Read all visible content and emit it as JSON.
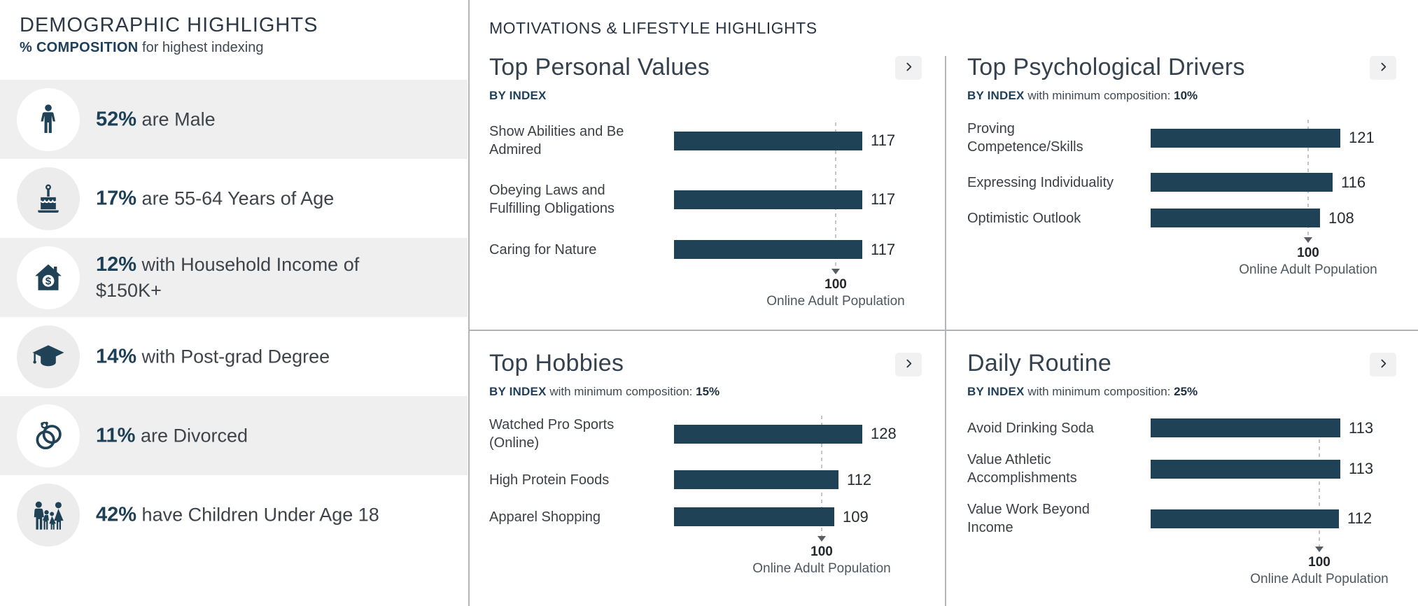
{
  "demographics": {
    "title": "DEMOGRAPHIC HIGHLIGHTS",
    "subtitle_emphasis": "% COMPOSITION",
    "subtitle_rest": "for highest indexing",
    "rows": [
      {
        "icon": "male-icon",
        "pct": "52%",
        "text": "are Male"
      },
      {
        "icon": "birthday-cake-icon",
        "pct": "17%",
        "text": "are 55-64 Years of Age"
      },
      {
        "icon": "house-income-icon",
        "pct": "12%",
        "text": "with Household Income of\n$150K+"
      },
      {
        "icon": "graduation-cap-icon",
        "pct": "14%",
        "text": "with Post-grad Degree"
      },
      {
        "icon": "wedding-rings-icon",
        "pct": "11%",
        "text": "are Divorced"
      },
      {
        "icon": "family-icon",
        "pct": "42%",
        "text": "have Children Under Age 18"
      }
    ]
  },
  "motivations": {
    "header": "MOTIVATIONS & LIFESTYLE HIGHLIGHTS",
    "reference": {
      "value": "100",
      "label": "Online Adult Population"
    },
    "panels": [
      {
        "id": "top-personal-values",
        "title": "Top Personal Values",
        "index_label": "BY INDEX",
        "composition_text": "",
        "composition_value": "",
        "bars": [
          {
            "label": "Show Abilities and Be\nAdmired",
            "value": 117
          },
          {
            "label": "Obeying Laws and\nFulfilling Obligations",
            "value": 117
          },
          {
            "label": "Caring for Nature",
            "value": 117
          }
        ]
      },
      {
        "id": "top-psychological-drivers",
        "title": "Top Psychological Drivers",
        "index_label": "BY INDEX",
        "composition_text": "with minimum composition:",
        "composition_value": "10%",
        "bars": [
          {
            "label": "Proving\nCompetence/Skills",
            "value": 121
          },
          {
            "label": "Expressing Individuality",
            "value": 116
          },
          {
            "label": "Optimistic Outlook",
            "value": 108
          }
        ]
      },
      {
        "id": "top-hobbies",
        "title": "Top Hobbies",
        "index_label": "BY INDEX",
        "composition_text": "with minimum composition:",
        "composition_value": "15%",
        "bars": [
          {
            "label": "Watched Pro Sports\n(Online)",
            "value": 128
          },
          {
            "label": "High Protein Foods",
            "value": 112
          },
          {
            "label": "Apparel Shopping",
            "value": 109
          }
        ]
      },
      {
        "id": "daily-routine",
        "title": "Daily Routine",
        "index_label": "BY INDEX",
        "composition_text": "with minimum composition:",
        "composition_value": "25%",
        "bars": [
          {
            "label": "Avoid Drinking Soda",
            "value": 113
          },
          {
            "label": "Value Athletic\nAccomplishments",
            "value": 113
          },
          {
            "label": "Value Work Beyond\nIncome",
            "value": 112
          }
        ]
      }
    ]
  },
  "colors": {
    "navy": "#1F4257",
    "row_shade": "#EFEFEF",
    "divider": "#B2B6B9"
  },
  "chart_data": [
    {
      "type": "bar",
      "orientation": "horizontal",
      "title": "Top Personal Values",
      "subtitle": "BY INDEX",
      "categories": [
        "Show Abilities and Be Admired",
        "Obeying Laws and Fulfilling Obligations",
        "Caring for Nature"
      ],
      "values": [
        117,
        117,
        117
      ],
      "reference_line": {
        "value": 100,
        "label": "Online Adult Population"
      },
      "xlim": [
        0,
        140
      ],
      "grid": false,
      "legend": false
    },
    {
      "type": "bar",
      "orientation": "horizontal",
      "title": "Top Psychological Drivers",
      "subtitle": "BY INDEX with minimum composition: 10%",
      "categories": [
        "Proving Competence/Skills",
        "Expressing Individuality",
        "Optimistic Outlook"
      ],
      "values": [
        121,
        116,
        108
      ],
      "reference_line": {
        "value": 100,
        "label": "Online Adult Population"
      },
      "xlim": [
        0,
        140
      ],
      "grid": false,
      "legend": false
    },
    {
      "type": "bar",
      "orientation": "horizontal",
      "title": "Top Hobbies",
      "subtitle": "BY INDEX with minimum composition: 15%",
      "categories": [
        "Watched Pro Sports (Online)",
        "High Protein Foods",
        "Apparel Shopping"
      ],
      "values": [
        128,
        112,
        109
      ],
      "reference_line": {
        "value": 100,
        "label": "Online Adult Population"
      },
      "xlim": [
        0,
        160
      ],
      "grid": false,
      "legend": false
    },
    {
      "type": "bar",
      "orientation": "horizontal",
      "title": "Daily Routine",
      "subtitle": "BY INDEX with minimum composition: 25%",
      "categories": [
        "Avoid Drinking Soda",
        "Value Athletic Accomplishments",
        "Value Work Beyond Income"
      ],
      "values": [
        113,
        113,
        112
      ],
      "reference_line": {
        "value": 100,
        "label": "Online Adult Population"
      },
      "xlim": [
        0,
        140
      ],
      "grid": false,
      "legend": false
    }
  ]
}
